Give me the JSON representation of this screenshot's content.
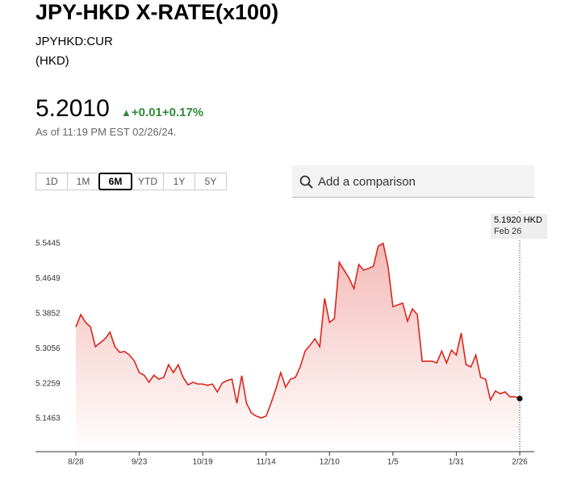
{
  "header": {
    "title": "JPY-HKD X-RATE(x100)",
    "ticker": "JPYHKD:CUR",
    "currency": "(HKD)",
    "price": "5.2010",
    "change": "+0.01",
    "change_pct": "+0.17%",
    "as_of": "As of 11:19 PM EST 02/26/24."
  },
  "range_buttons": [
    "1D",
    "1M",
    "6M",
    "YTD",
    "1Y",
    "5Y"
  ],
  "selected_range": "6M",
  "search_placeholder": "Add a comparison",
  "chart_data": {
    "type": "line",
    "categories": [
      "8/28",
      null,
      null,
      null,
      null,
      null,
      null,
      null,
      null,
      null,
      null,
      null,
      null,
      "9/23",
      null,
      null,
      null,
      null,
      null,
      null,
      null,
      null,
      null,
      null,
      null,
      null,
      "10/19",
      null,
      null,
      null,
      null,
      null,
      null,
      null,
      null,
      null,
      null,
      null,
      null,
      "11/14",
      null,
      null,
      null,
      null,
      null,
      null,
      null,
      null,
      null,
      null,
      null,
      null,
      "12/10",
      null,
      null,
      null,
      null,
      null,
      null,
      null,
      null,
      null,
      null,
      null,
      null,
      "1/5",
      null,
      null,
      null,
      null,
      null,
      null,
      null,
      null,
      null,
      null,
      null,
      null,
      "1/31",
      null,
      null,
      null,
      null,
      null,
      null,
      null,
      null,
      null,
      null,
      null,
      null,
      "2/26"
    ],
    "series": [
      {
        "name": "JPY-HKD",
        "color": "#d9261c",
        "values": [
          5.355,
          5.383,
          5.365,
          5.355,
          5.31,
          5.319,
          5.328,
          5.343,
          5.31,
          5.297,
          5.299,
          5.291,
          5.277,
          5.251,
          5.245,
          5.229,
          5.245,
          5.236,
          5.24,
          5.269,
          5.251,
          5.269,
          5.24,
          5.223,
          5.229,
          5.225,
          5.225,
          5.222,
          5.225,
          5.207,
          5.227,
          5.233,
          5.236,
          5.181,
          5.244,
          5.181,
          5.159,
          5.152,
          5.148,
          5.152,
          5.181,
          5.214,
          5.251,
          5.218,
          5.236,
          5.24,
          5.264,
          5.3,
          5.313,
          5.328,
          5.31,
          5.42,
          5.365,
          5.374,
          5.502,
          5.484,
          5.466,
          5.442,
          5.497,
          5.484,
          5.488,
          5.493,
          5.539,
          5.545,
          5.493,
          5.401,
          5.405,
          5.409,
          5.368,
          5.396,
          5.383,
          5.277,
          5.277,
          5.277,
          5.273,
          5.3,
          5.273,
          5.302,
          5.291,
          5.341,
          5.269,
          5.264,
          5.291,
          5.24,
          5.236,
          5.189,
          5.209,
          5.203,
          5.207,
          5.196,
          5.196,
          5.192
        ]
      }
    ],
    "ylim": [
      5.0711,
      5.6179
    ],
    "yticks": [
      5.1463,
      5.2259,
      5.3056,
      5.3852,
      5.4649,
      5.5445
    ],
    "tooltip": {
      "value": "5.1920 HKD",
      "date": "Feb 26"
    }
  }
}
